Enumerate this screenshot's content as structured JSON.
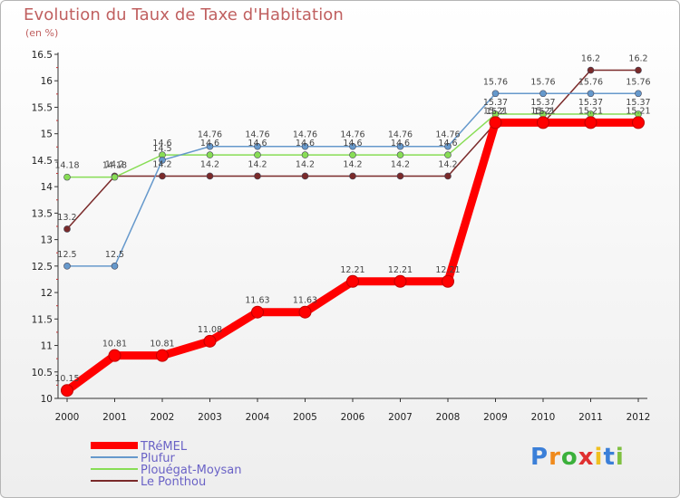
{
  "chart_data": {
    "type": "line",
    "title": "Evolution du Taux de Taxe d'Habitation",
    "subtitle": "(en %)",
    "x": [
      2000,
      2001,
      2002,
      2003,
      2004,
      2005,
      2006,
      2007,
      2008,
      2009,
      2010,
      2011,
      2012
    ],
    "xlabels": [
      "2000",
      "2001",
      "2002",
      "2003",
      "2004",
      "2005",
      "2006",
      "2007",
      "2008",
      "2009",
      "2010",
      "2011",
      "2012"
    ],
    "ylim": [
      10,
      16.5
    ],
    "yticks": [
      10,
      10.5,
      11,
      11.5,
      12,
      12.5,
      13,
      13.5,
      14,
      14.5,
      15,
      15.5,
      16,
      16.5
    ],
    "yticklabels": [
      "10",
      "10.5",
      "11",
      "11.5",
      "12",
      "12.5",
      "13",
      "13.5",
      "14",
      "14.5",
      "15",
      "15.5",
      "16",
      "16.5"
    ],
    "legend_position": "bottom-left",
    "series": [
      {
        "name": "TRéMEL",
        "color": "#ff0000",
        "values": [
          10.15,
          10.81,
          10.81,
          11.08,
          11.63,
          11.63,
          12.21,
          12.21,
          12.21,
          15.21,
          15.21,
          15.21,
          15.21
        ],
        "labels": [
          "10.15",
          "10.81",
          "10.81",
          "11.08",
          "11.63",
          "11.63",
          "12.21",
          "12.21",
          "12.21",
          "15.21",
          "15.21",
          "15.21",
          "15.21"
        ]
      },
      {
        "name": "Plufur",
        "color": "#6699cc",
        "values": [
          12.5,
          12.5,
          14.5,
          14.76,
          14.76,
          14.76,
          14.76,
          14.76,
          14.76,
          15.76,
          15.76,
          15.76,
          15.76
        ],
        "labels": [
          "12.5",
          "12.5",
          "14.5",
          "14.76",
          "14.76",
          "14.76",
          "14.76",
          "14.76",
          "14.76",
          "15.76",
          "15.76",
          "15.76",
          "15.76"
        ]
      },
      {
        "name": "Plouégat-Moysan",
        "color": "#88dd55",
        "values": [
          14.18,
          14.18,
          14.6,
          14.6,
          14.6,
          14.6,
          14.6,
          14.6,
          14.6,
          15.37,
          15.37,
          15.37,
          15.37
        ],
        "labels": [
          "14.18",
          "14.18",
          "14.6",
          "14.6",
          "14.6",
          "14.6",
          "14.6",
          "14.6",
          "14.6",
          "15.37",
          "15.37",
          "15.37",
          "15.37"
        ]
      },
      {
        "name": "Le Ponthou",
        "color": "#7a2a2a",
        "values": [
          13.2,
          14.2,
          14.2,
          14.2,
          14.2,
          14.2,
          14.2,
          14.2,
          14.2,
          15.2,
          15.2,
          16.2,
          16.2
        ],
        "labels": [
          "13.2",
          "14.2",
          "14.2",
          "14.2",
          "14.2",
          "14.2",
          "14.2",
          "14.2",
          "14.2",
          "15.2",
          "15.2",
          "16.2",
          "16.2"
        ]
      }
    ]
  },
  "logo": {
    "letters": [
      "P",
      "r",
      "o",
      "x",
      "i",
      "t",
      "i"
    ],
    "colors": [
      "#3b7fd8",
      "#f08a1c",
      "#3bb03b",
      "#e03030",
      "#f0c020",
      "#3b7fd8",
      "#7fc040"
    ]
  }
}
